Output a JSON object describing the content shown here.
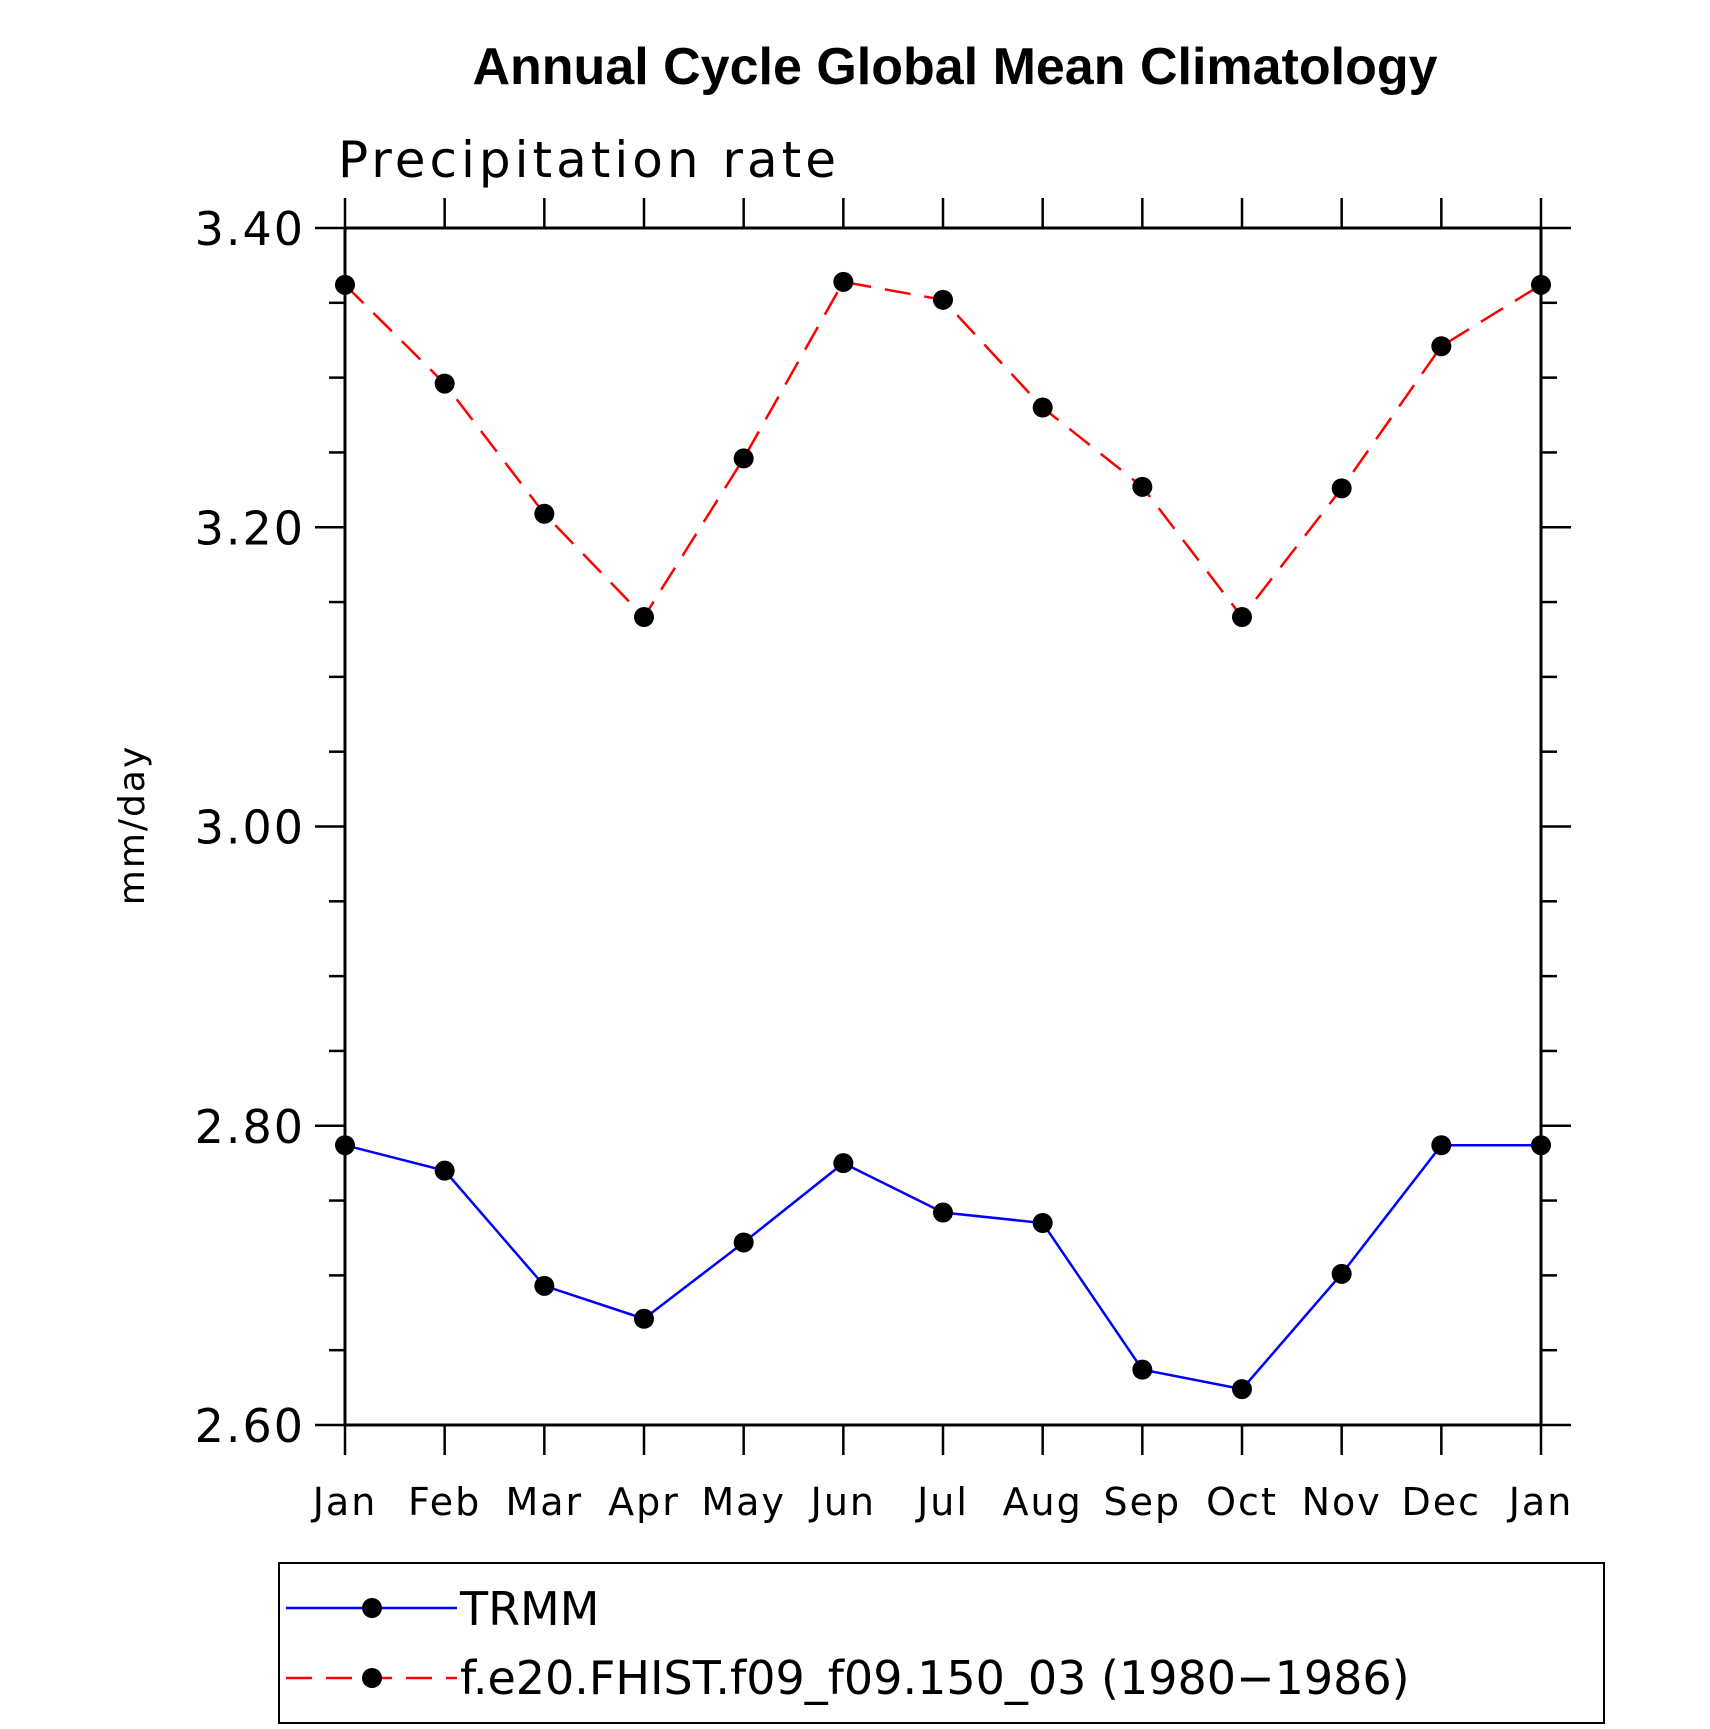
{
  "chart_data": {
    "type": "line",
    "title": "Annual Cycle Global Mean Climatology",
    "subtitle": "Precipitation rate",
    "ylabel": "mm/day",
    "xlabel": "",
    "ylim": [
      2.6,
      3.4
    ],
    "y_major_ticks": [
      "2.60",
      "2.80",
      "3.00",
      "3.20",
      "3.40"
    ],
    "y_minor_step": 0.05,
    "categories": [
      "Jan",
      "Feb",
      "Mar",
      "Apr",
      "May",
      "Jun",
      "Jul",
      "Aug",
      "Sep",
      "Oct",
      "Nov",
      "Dec",
      "Jan"
    ],
    "grid": false,
    "legend_position": "bottom",
    "series": [
      {
        "name": "TRMM",
        "color": "#0000ff",
        "line_style": "solid",
        "marker": "filled-circle",
        "values": [
          2.787,
          2.77,
          2.693,
          2.671,
          2.722,
          2.775,
          2.742,
          2.735,
          2.637,
          2.624,
          2.701,
          2.787,
          2.787
        ]
      },
      {
        "name": "f.e20.FHIST.f09_f09.150_03 (1980−1986)",
        "color": "#ff0000",
        "line_style": "dashed",
        "marker": "filled-circle",
        "values": [
          3.362,
          3.296,
          3.209,
          3.14,
          3.246,
          3.364,
          3.352,
          3.28,
          3.227,
          3.14,
          3.226,
          3.321,
          3.362
        ]
      }
    ]
  }
}
